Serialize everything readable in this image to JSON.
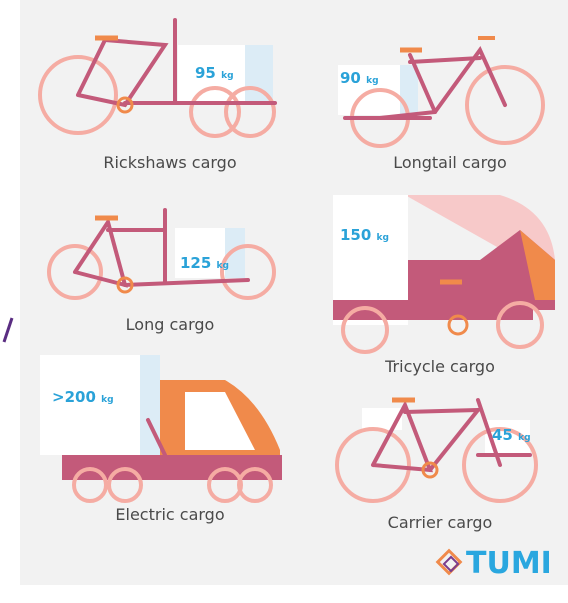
{
  "items": [
    {
      "label": "Rickshaws cargo",
      "capacity": "95",
      "unit": "kg"
    },
    {
      "label": "Longtail cargo",
      "capacity": "90",
      "unit": "kg"
    },
    {
      "label": "Long cargo",
      "capacity": "125",
      "unit": "kg"
    },
    {
      "label": "Tricycle cargo",
      "capacity": "150",
      "unit": "kg"
    },
    {
      "label": "Electric cargo",
      "capacity": ">200",
      "unit": "kg"
    },
    {
      "label": "Carrier cargo",
      "capacity": "45",
      "unit": "kg"
    }
  ],
  "logo": "TUMI"
}
